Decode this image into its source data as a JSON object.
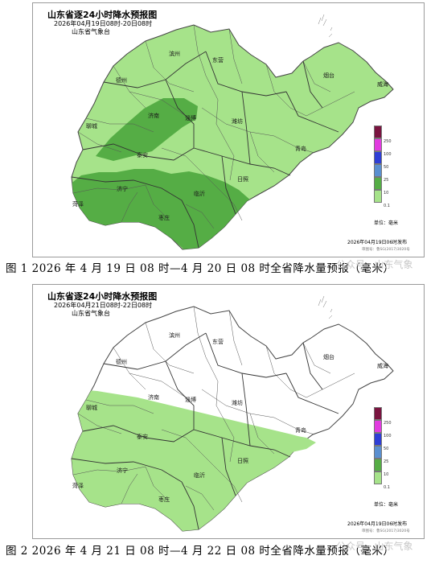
{
  "panels": [
    {
      "title": "山东省逐24小时降水预报图",
      "subtitle": "2026年04月19日08时-20日08时",
      "org": "山东省气象台",
      "issued": "2026年04月19日06时发布",
      "approval": "审图号：鲁SG(2017)3020号",
      "cities": [
        "德州",
        "滨州",
        "东营",
        "烟台",
        "威海",
        "聊城",
        "济南",
        "淄博",
        "潍坊",
        "青岛",
        "泰安",
        "日照",
        "菏泽",
        "济宁",
        "临沂",
        "枣庄"
      ]
    },
    {
      "title": "山东省逐24小时降水预报图",
      "subtitle": "2026年04月21日08时-22日08时",
      "org": "山东省气象台",
      "issued": "2026年04月19日06时发布",
      "approval": "审图号：鲁SG(2017)3020号",
      "cities": [
        "德州",
        "滨州",
        "东营",
        "烟台",
        "威海",
        "聊城",
        "济南",
        "淄博",
        "潍坊",
        "青岛",
        "泰安",
        "日照",
        "菏泽",
        "济宁",
        "临沂",
        "枣庄"
      ]
    }
  ],
  "legend": {
    "labels": [
      "250",
      "100",
      "50",
      "25",
      "10",
      "0.1"
    ],
    "colors": [
      "#7a1440",
      "#e23be0",
      "#2e3ed6",
      "#5a8fd0",
      "#55ad45",
      "#a6e38a"
    ],
    "unit": "单位：毫米"
  },
  "colors": {
    "light_rain": "#a6e38a",
    "moderate_rain": "#55ad45",
    "province_border": "#444444"
  },
  "captions": [
    "图 1  2026 年 4 月 19 日 08 时—4 月 20 日 08 时全省降水量预报（毫米）",
    "图 2  2026 年 4 月 21 日 08 时—4 月 22 日 08 时全省降水量预报（毫米）"
  ],
  "watermark": "公众号 · 山东气象"
}
